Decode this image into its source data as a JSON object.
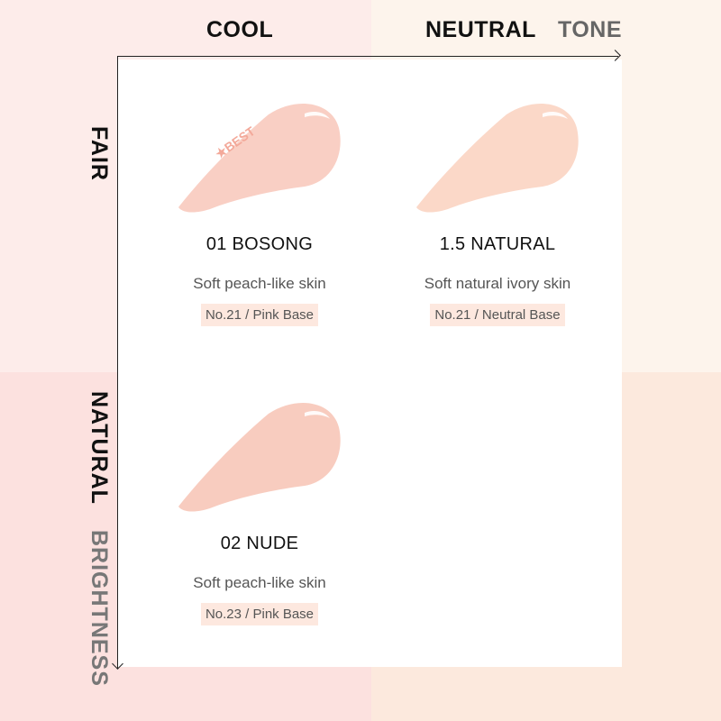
{
  "axes": {
    "x_labels": [
      "COOL",
      "NEUTRAL"
    ],
    "x_title": "TONE",
    "y_labels": [
      "FAIR",
      "NATURAL"
    ],
    "y_title": "BRIGHTNESS"
  },
  "colors": {
    "bg_cool_fair": "#fdecea",
    "bg_neutral_fair": "#fdf4ec",
    "bg_cool_natural": "#fce1df",
    "bg_neutral_natural": "#fce9dd",
    "tag_bg": "#fde8df"
  },
  "products": [
    {
      "name": "01  BOSONG",
      "description": "Soft peach-like skin",
      "base": "No.21 / Pink Base",
      "badge": "★BEST",
      "color": "#f9cfc4"
    },
    {
      "name": "1.5  NATURAL",
      "description": "Soft natural ivory skin",
      "base": "No.21 / Neutral Base",
      "color": "#fbd8c8"
    },
    {
      "name": "02  NUDE",
      "description": "Soft peach-like skin",
      "base": "No.23 / Pink Base",
      "color": "#f8ccbf"
    }
  ]
}
